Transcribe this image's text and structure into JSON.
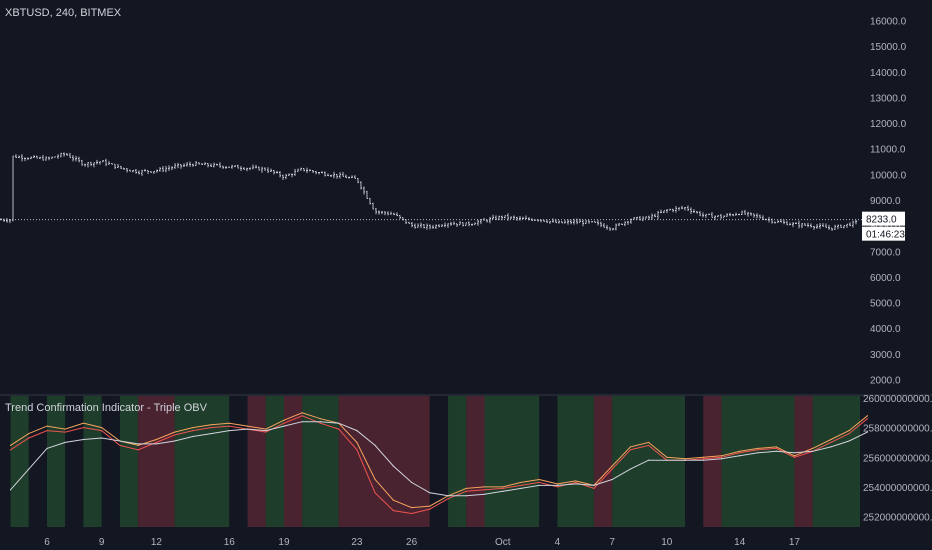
{
  "chart_data": [
    {
      "type": "ohlc",
      "title": "XBTUSD, 240, BITMEX",
      "ylim": [
        1500,
        16500
      ],
      "y_ticks": [
        2000,
        3000,
        4000,
        5000,
        6000,
        7000,
        8000,
        9000,
        10000,
        11000,
        12000,
        13000,
        14000,
        15000,
        16000
      ],
      "y_tick_labels": [
        "2000.0",
        "3000.0",
        "4000.0",
        "5000.0",
        "6000.0",
        "7000.0",
        "8000.0",
        "9000.0",
        "10000.0",
        "11000.0",
        "12000.0",
        "13000.0",
        "14000.0",
        "15000.0",
        "16000.0"
      ],
      "last_price": 8233.0,
      "last_price_label": "8233.0",
      "countdown_label": "01:46:23",
      "x_labels": [
        "6",
        "9",
        "12",
        "16",
        "19",
        "23",
        "26",
        "Oct",
        "4",
        "7",
        "10",
        "14",
        "17"
      ],
      "x_label_dates": [
        "Sep 6",
        "Sep 9",
        "Sep 12",
        "Sep 16",
        "Sep 19",
        "Sep 23",
        "Sep 26",
        "Oct 1",
        "Oct 4",
        "Oct 7",
        "Oct 10",
        "Oct 14",
        "Oct 17"
      ],
      "close_trend": {
        "x": [
          "Sep 4",
          "Sep 6",
          "Sep 7",
          "Sep 8",
          "Sep 9",
          "Sep 10",
          "Sep 11",
          "Sep 12",
          "Sep 13",
          "Sep 14",
          "Sep 15",
          "Sep 16",
          "Sep 17",
          "Sep 18",
          "Sep 19",
          "Sep 20",
          "Sep 21",
          "Sep 22",
          "Sep 23",
          "Sep 24",
          "Sep 25",
          "Sep 26",
          "Sep 27",
          "Sep 28",
          "Sep 29",
          "Sep 30",
          "Oct 1",
          "Oct 2",
          "Oct 3",
          "Oct 4",
          "Oct 5",
          "Oct 6",
          "Oct 7",
          "Oct 8",
          "Oct 9",
          "Oct 10",
          "Oct 11",
          "Oct 12",
          "Oct 13",
          "Oct 14",
          "Oct 15",
          "Oct 16",
          "Oct 17",
          "Oct 18",
          "Oct 19",
          "Oct 20",
          "Oct 21"
        ],
        "values": [
          10700,
          10600,
          10800,
          10400,
          10500,
          10250,
          10100,
          10150,
          10300,
          10400,
          10350,
          10300,
          10250,
          10200,
          9900,
          10200,
          10050,
          9950,
          9800,
          8550,
          8450,
          8000,
          7950,
          8100,
          8050,
          8200,
          8350,
          8250,
          8250,
          8100,
          8150,
          8100,
          7900,
          8250,
          8300,
          8600,
          8700,
          8400,
          8350,
          8500,
          8350,
          8150,
          8050,
          8000,
          7900,
          8050,
          8233
        ]
      }
    },
    {
      "type": "line",
      "title": "Trend Confirmation Indicator - Triple OBV",
      "ylim": [
        251300000000,
        260100000000
      ],
      "y_ticks": [
        252000000000,
        254000000000,
        256000000000,
        258000000000,
        260000000000
      ],
      "y_tick_labels": [
        "252000000000.0",
        "254000000000.0",
        "256000000000.0",
        "258000000000.0",
        "260000000000.0"
      ],
      "x": [
        "Sep 4",
        "Sep 5",
        "Sep 6",
        "Sep 7",
        "Sep 8",
        "Sep 9",
        "Sep 10",
        "Sep 11",
        "Sep 12",
        "Sep 13",
        "Sep 14",
        "Sep 15",
        "Sep 16",
        "Sep 17",
        "Sep 18",
        "Sep 19",
        "Sep 20",
        "Sep 21",
        "Sep 22",
        "Sep 23",
        "Sep 24",
        "Sep 25",
        "Sep 26",
        "Sep 27",
        "Sep 28",
        "Sep 29",
        "Sep 30",
        "Oct 1",
        "Oct 2",
        "Oct 3",
        "Oct 4",
        "Oct 5",
        "Oct 6",
        "Oct 7",
        "Oct 8",
        "Oct 9",
        "Oct 10",
        "Oct 11",
        "Oct 12",
        "Oct 13",
        "Oct 14",
        "Oct 15",
        "Oct 16",
        "Oct 17",
        "Oct 18",
        "Oct 19",
        "Oct 20",
        "Oct 21"
      ],
      "series": [
        {
          "color": "#f7a35c",
          "values": [
            256800000000,
            257600000000,
            258100000000,
            257900000000,
            258300000000,
            258000000000,
            257100000000,
            256800000000,
            257200000000,
            257700000000,
            258000000000,
            258200000000,
            258300000000,
            258100000000,
            257900000000,
            258500000000,
            259000000000,
            258600000000,
            258300000000,
            257000000000,
            254500000000,
            253100000000,
            252600000000,
            252700000000,
            253400000000,
            253900000000,
            254000000000,
            254000000000,
            254300000000,
            254500000000,
            254200000000,
            254400000000,
            254100000000,
            255400000000,
            256700000000,
            257000000000,
            256000000000,
            255900000000,
            256000000000,
            256100000000,
            256400000000,
            256600000000,
            256700000000,
            256100000000,
            256600000000,
            257200000000,
            257800000000,
            258800000000
          ]
        },
        {
          "color": "#ef5350",
          "values": [
            256500000000,
            257300000000,
            257800000000,
            257700000000,
            258000000000,
            257800000000,
            256800000000,
            256500000000,
            257000000000,
            257500000000,
            257800000000,
            258000000000,
            258100000000,
            257900000000,
            257700000000,
            258300000000,
            258800000000,
            258300000000,
            257900000000,
            256500000000,
            253600000000,
            252400000000,
            252200000000,
            252500000000,
            253200000000,
            253700000000,
            253800000000,
            253900000000,
            254100000000,
            254300000000,
            254000000000,
            254300000000,
            253900000000,
            255200000000,
            256500000000,
            256800000000,
            255800000000,
            255800000000,
            255900000000,
            256000000000,
            256300000000,
            256500000000,
            256600000000,
            256000000000,
            256400000000,
            257000000000,
            257600000000,
            258600000000
          ]
        },
        {
          "color": "#d1d4dc",
          "values": [
            253800000000,
            255200000000,
            256600000000,
            257000000000,
            257200000000,
            257300000000,
            257100000000,
            256900000000,
            256900000000,
            257100000000,
            257400000000,
            257600000000,
            257800000000,
            257900000000,
            257800000000,
            258100000000,
            258400000000,
            258400000000,
            258300000000,
            257800000000,
            256800000000,
            255400000000,
            254300000000,
            253600000000,
            253400000000,
            253400000000,
            253500000000,
            253700000000,
            253900000000,
            254100000000,
            254100000000,
            254200000000,
            254100000000,
            254500000000,
            255200000000,
            255800000000,
            255800000000,
            255800000000,
            255800000000,
            255900000000,
            256100000000,
            256300000000,
            256400000000,
            256300000000,
            256400000000,
            256700000000,
            257100000000,
            257700000000
          ]
        }
      ],
      "regime_bands": [
        {
          "from": "Sep 4",
          "to": "Sep 5",
          "state": "bull"
        },
        {
          "from": "Sep 5",
          "to": "Sep 6",
          "state": "neutral"
        },
        {
          "from": "Sep 6",
          "to": "Sep 7",
          "state": "bull"
        },
        {
          "from": "Sep 7",
          "to": "Sep 8",
          "state": "neutral"
        },
        {
          "from": "Sep 8",
          "to": "Sep 9",
          "state": "bull"
        },
        {
          "from": "Sep 9",
          "to": "Sep 10",
          "state": "neutral"
        },
        {
          "from": "Sep 10",
          "to": "Sep 11",
          "state": "bull"
        },
        {
          "from": "Sep 11",
          "to": "Sep 13",
          "state": "bear"
        },
        {
          "from": "Sep 13",
          "to": "Sep 16",
          "state": "bull"
        },
        {
          "from": "Sep 16",
          "to": "Sep 17",
          "state": "neutral"
        },
        {
          "from": "Sep 17",
          "to": "Sep 18",
          "state": "bear"
        },
        {
          "from": "Sep 18",
          "to": "Sep 19",
          "state": "bull"
        },
        {
          "from": "Sep 19",
          "to": "Sep 20",
          "state": "bear"
        },
        {
          "from": "Sep 20",
          "to": "Sep 22",
          "state": "bull"
        },
        {
          "from": "Sep 22",
          "to": "Sep 27",
          "state": "bear"
        },
        {
          "from": "Sep 27",
          "to": "Sep 28",
          "state": "neutral"
        },
        {
          "from": "Sep 28",
          "to": "Sep 29",
          "state": "bull"
        },
        {
          "from": "Sep 29",
          "to": "Sep 30",
          "state": "bear"
        },
        {
          "from": "Sep 30",
          "to": "Oct 3",
          "state": "bull"
        },
        {
          "from": "Oct 3",
          "to": "Oct 4",
          "state": "neutral"
        },
        {
          "from": "Oct 4",
          "to": "Oct 6",
          "state": "bull"
        },
        {
          "from": "Oct 6",
          "to": "Oct 7",
          "state": "bear"
        },
        {
          "from": "Oct 7",
          "to": "Oct 11",
          "state": "bull"
        },
        {
          "from": "Oct 11",
          "to": "Oct 12",
          "state": "neutral"
        },
        {
          "from": "Oct 12",
          "to": "Oct 13",
          "state": "bear"
        },
        {
          "from": "Oct 13",
          "to": "Oct 17",
          "state": "bull"
        },
        {
          "from": "Oct 17",
          "to": "Oct 18",
          "state": "bear"
        },
        {
          "from": "Oct 18",
          "to": "Oct 21",
          "state": "bull"
        }
      ],
      "band_colors": {
        "bull": "#1f3d2b",
        "bear": "#4a2330",
        "neutral": "#131722"
      }
    }
  ]
}
